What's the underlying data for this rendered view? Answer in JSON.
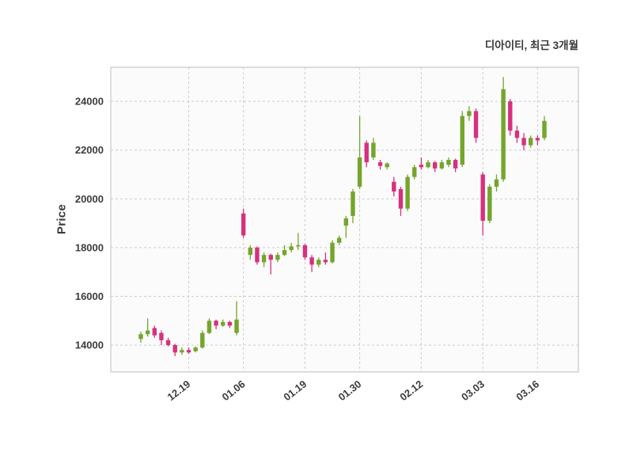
{
  "title": "디아이티, 최근 3개월",
  "ylabel": "Price",
  "chart_data": {
    "type": "candlestick",
    "title": "디아이티, 최근 3개월",
    "ylabel": "Price",
    "xlabel": "",
    "grid": true,
    "grid_style": "dashed",
    "ylim": [
      12900,
      25400
    ],
    "y_ticks": [
      14000,
      16000,
      18000,
      20000,
      22000,
      24000
    ],
    "x_tick_labels": [
      "12.19",
      "01.06",
      "01.19",
      "01.30",
      "02.12",
      "03.03",
      "03.16"
    ],
    "x_tick_indices": [
      7,
      15,
      24,
      32,
      41,
      50,
      58
    ],
    "up_color": "#74a52c",
    "down_color": "#d6307f",
    "ohlc_format": [
      "open",
      "high",
      "low",
      "close"
    ],
    "ohlc": [
      [
        14250,
        14550,
        14100,
        14450
      ],
      [
        14450,
        15100,
        14350,
        14600
      ],
      [
        14700,
        14800,
        14300,
        14400
      ],
      [
        14500,
        14600,
        14000,
        14200
      ],
      [
        14200,
        14300,
        13950,
        14000
      ],
      [
        14000,
        14050,
        13550,
        13700
      ],
      [
        13700,
        13900,
        13600,
        13800
      ],
      [
        13800,
        13900,
        13650,
        13700
      ],
      [
        13750,
        13950,
        13700,
        13900
      ],
      [
        13900,
        14600,
        13850,
        14500
      ],
      [
        14500,
        15100,
        14450,
        15000
      ],
      [
        15000,
        15050,
        14650,
        14800
      ],
      [
        14800,
        15050,
        14750,
        14950
      ],
      [
        14950,
        15000,
        14700,
        14800
      ],
      [
        14500,
        15800,
        14400,
        15050
      ],
      [
        19400,
        19600,
        18400,
        18500
      ],
      [
        17700,
        18100,
        17500,
        18000
      ],
      [
        18000,
        18050,
        17300,
        17400
      ],
      [
        17400,
        17800,
        17200,
        17700
      ],
      [
        17700,
        17750,
        16900,
        17500
      ],
      [
        17500,
        17800,
        17400,
        17700
      ],
      [
        17700,
        18100,
        17650,
        17900
      ],
      [
        17900,
        18200,
        17800,
        18050
      ],
      [
        18050,
        18600,
        17900,
        18100
      ],
      [
        18100,
        18150,
        17500,
        17600
      ],
      [
        17600,
        17700,
        17000,
        17300
      ],
      [
        17300,
        17600,
        17200,
        17500
      ],
      [
        17500,
        17800,
        17300,
        17400
      ],
      [
        17400,
        18300,
        17350,
        18200
      ],
      [
        18200,
        18500,
        18100,
        18400
      ],
      [
        18900,
        19300,
        18400,
        19200
      ],
      [
        19300,
        20400,
        19000,
        20300
      ],
      [
        20500,
        23400,
        20400,
        21700
      ],
      [
        22300,
        22400,
        21300,
        21500
      ],
      [
        21700,
        22500,
        21600,
        22300
      ],
      [
        21500,
        21600,
        21200,
        21350
      ],
      [
        21300,
        21500,
        21200,
        21450
      ],
      [
        20700,
        20900,
        20100,
        20300
      ],
      [
        20400,
        20500,
        19300,
        19600
      ],
      [
        19600,
        21000,
        19500,
        20900
      ],
      [
        20900,
        21400,
        20800,
        21300
      ],
      [
        21400,
        21700,
        21200,
        21300
      ],
      [
        21300,
        21600,
        21250,
        21500
      ],
      [
        21500,
        21550,
        21100,
        21250
      ],
      [
        21250,
        21600,
        21200,
        21500
      ],
      [
        21400,
        21700,
        21300,
        21600
      ],
      [
        21600,
        21650,
        21100,
        21250
      ],
      [
        21400,
        23600,
        21300,
        23400
      ],
      [
        23400,
        23800,
        23200,
        23600
      ],
      [
        23600,
        23700,
        22300,
        22500
      ],
      [
        21000,
        21100,
        18500,
        19100
      ],
      [
        19100,
        20600,
        19000,
        20500
      ],
      [
        20500,
        21000,
        20300,
        20800
      ],
      [
        20800,
        25000,
        20700,
        24500
      ],
      [
        24000,
        24100,
        22600,
        22800
      ],
      [
        22800,
        23000,
        22300,
        22500
      ],
      [
        22500,
        22700,
        22000,
        22200
      ],
      [
        22200,
        22600,
        22100,
        22500
      ],
      [
        22500,
        22600,
        22200,
        22400
      ],
      [
        22500,
        23400,
        22400,
        23200
      ]
    ]
  }
}
